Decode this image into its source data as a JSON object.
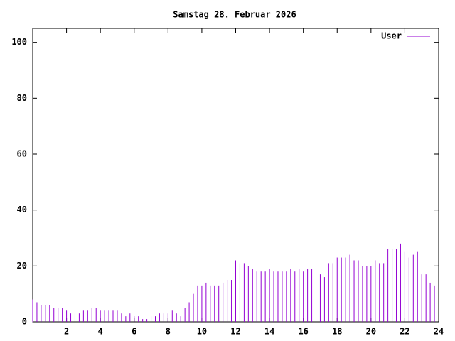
{
  "chart_data": {
    "type": "impulse",
    "title": "Samstag 28. Februar 2026",
    "x": [
      0,
      0.25,
      0.5,
      0.75,
      1,
      1.25,
      1.5,
      1.75,
      2,
      2.25,
      2.5,
      2.75,
      3,
      3.25,
      3.5,
      3.75,
      4,
      4.25,
      4.5,
      4.75,
      5,
      5.25,
      5.5,
      5.75,
      6,
      6.25,
      6.5,
      6.75,
      7,
      7.25,
      7.5,
      7.75,
      8,
      8.25,
      8.5,
      8.75,
      9,
      9.25,
      9.5,
      9.75,
      10,
      10.25,
      10.5,
      10.75,
      11,
      11.25,
      11.5,
      11.75,
      12,
      12.25,
      12.5,
      12.75,
      13,
      13.25,
      13.5,
      13.75,
      14,
      14.25,
      14.5,
      14.75,
      15,
      15.25,
      15.5,
      15.75,
      16,
      16.25,
      16.5,
      16.75,
      17,
      17.25,
      17.5,
      17.75,
      18,
      18.25,
      18.5,
      18.75,
      19,
      19.25,
      19.5,
      19.75,
      20,
      20.25,
      20.5,
      20.75,
      21,
      21.25,
      21.5,
      21.75,
      22,
      22.25,
      22.5,
      22.75,
      23,
      23.25,
      23.5,
      23.75
    ],
    "series": [
      {
        "name": "User",
        "color": "#9400d3",
        "values": [
          8,
          7,
          6,
          6,
          6,
          5,
          5,
          5,
          4,
          3,
          3,
          3,
          4,
          4,
          5,
          5,
          4,
          4,
          4,
          4,
          4,
          3,
          2,
          3,
          2,
          2,
          1,
          1,
          2,
          2,
          3,
          3,
          3,
          4,
          3,
          2,
          5,
          7,
          10,
          13,
          13,
          14,
          13,
          13,
          13,
          14,
          15,
          15,
          22,
          21,
          21,
          20,
          19,
          18,
          18,
          18,
          19,
          18,
          18,
          18,
          18,
          19,
          18,
          19,
          18,
          19,
          19,
          16,
          17,
          16,
          21,
          21,
          23,
          23,
          23,
          24,
          22,
          22,
          20,
          20,
          20,
          22,
          21,
          21,
          26,
          26,
          26,
          28,
          25,
          23,
          24,
          25,
          17,
          17,
          14,
          13
        ]
      }
    ],
    "xlim": [
      0,
      24
    ],
    "xticks": [
      2,
      4,
      6,
      8,
      10,
      12,
      14,
      16,
      18,
      20,
      22,
      24
    ],
    "ylim": [
      0,
      105
    ],
    "yticks": [
      0,
      20,
      40,
      60,
      80,
      100
    ],
    "legend": "top-right"
  }
}
